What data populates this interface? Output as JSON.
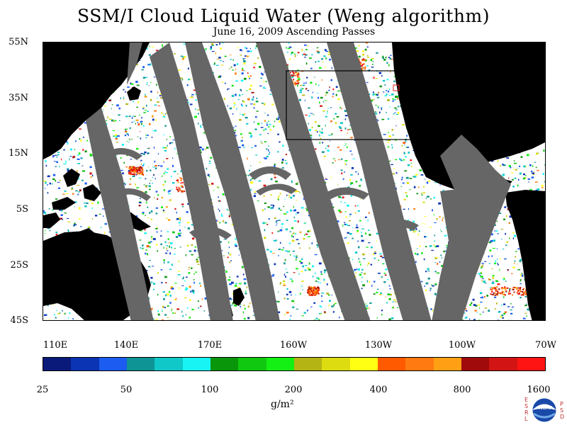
{
  "title": "SSM/I Cloud Liquid Water (Weng algorithm)",
  "subtitle": "June 16, 2009  Ascending Passes",
  "lat_labels": [
    "55N",
    "35N",
    "15N",
    "5S",
    "25S",
    "45S"
  ],
  "lon_labels": [
    "110E",
    "140E",
    "170E",
    "160W",
    "130W",
    "100W",
    "70W"
  ],
  "colorbar": {
    "colors": [
      "#0a1a7a",
      "#0a34b4",
      "#1c5cf0",
      "#0e9494",
      "#10c8c8",
      "#18f4f4",
      "#0a960a",
      "#10c810",
      "#14f014",
      "#b4b414",
      "#dcdc10",
      "#ffff14",
      "#ff5a00",
      "#ff7a10",
      "#ffa014",
      "#a00a0a",
      "#d21414",
      "#ff1414"
    ],
    "labels": [
      "25",
      "50",
      "100",
      "200",
      "400",
      "800",
      "1600"
    ],
    "units": "g/m²"
  },
  "logo": {
    "left_text": "ESRL",
    "right_text": "PSD",
    "center_text": "NOAA"
  }
}
